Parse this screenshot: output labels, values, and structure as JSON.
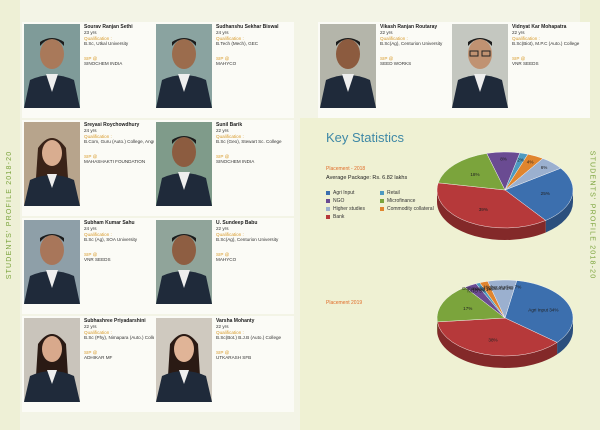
{
  "spine": {
    "left_text": "STUDENTS' PROFILE 2018-20",
    "right_text": "STUDENTS' PROFILE 2018-20"
  },
  "profiles": [
    {
      "name": "Sourav Ranjan Sethi",
      "age": "23 yrs",
      "qual_label": "Qualification :",
      "qualification": "B.Sc, Utkal University",
      "sip_label": "SIP @",
      "sip": "SINOCHEM INDIA"
    },
    {
      "name": "Sudhanshu Sekhar Biswal",
      "age": "24 yrs",
      "qual_label": "Qualification :",
      "qualification": "B.Tech (Mech), GEC",
      "sip_label": "SIP @",
      "sip": "MAHYCO"
    },
    {
      "name": "Vikash Ranjan Routaray",
      "age": "22 yrs",
      "qual_label": "Qualification :",
      "qualification": "B.Sc(Ag), Centurion University",
      "sip_label": "SIP @",
      "sip": "SEED WORKS"
    },
    {
      "name": "Vidnyat Kar Mohapatra",
      "age": "22 yrs",
      "qual_label": "Qualification :",
      "qualification": "B.Sc(Biot), M.P.C (Auto.) College",
      "sip_label": "SIP @",
      "sip": "VNR SEEDS"
    },
    {
      "name": "Sreyasi Roychowdhury",
      "age": "24 yrs",
      "qual_label": "Qualification :",
      "qualification": "B.Com, Guru (Auto.) College, Angul",
      "sip_label": "SIP @",
      "sip": "MAHASHAKTI FOUNDATION"
    },
    {
      "name": "Sunil Barik",
      "age": "22 yrs",
      "qual_label": "Qualification :",
      "qualification": "B.Sc (Geo), Stewart Sc. College",
      "sip_label": "SIP @",
      "sip": "SINOCHEM INDIA"
    },
    {
      "name": "Subham Kumar Sahu",
      "age": "24 yrs",
      "qual_label": "Qualification :",
      "qualification": "B.Sc (Ag), SOA University",
      "sip_label": "SIP @",
      "sip": "VNR SEEDS"
    },
    {
      "name": "U. Sundeep Babu",
      "age": "22 yrs",
      "qual_label": "Qualification :",
      "qualification": "B.Sc(Ag), Centurion University",
      "sip_label": "SIP @",
      "sip": "MAHYCO"
    },
    {
      "name": "Subhashree Priyadarshini",
      "age": "22 yrs",
      "qual_label": "Qualification :",
      "qualification": "B.Sc (Phy), Nimapara (Auto.) College",
      "sip_label": "SIP @",
      "sip": "ADHIKAR MF"
    },
    {
      "name": "Varsha Mohanty",
      "age": "22 yrs",
      "qual_label": "Qualification :",
      "qualification": "B.Sc(Bot.) B.J.B (Auto.) College",
      "sip_label": "SIP @",
      "sip": "UTKARASH SFB"
    }
  ],
  "stats": {
    "title": "Key Statistics",
    "placement_2018": "Placement - 2018",
    "average_package": "Average Package: Rs. 6.82 lakhs",
    "placement_2019": "Placement 2019"
  },
  "legend": [
    {
      "label": "Agri Input",
      "color": "#3c6fae"
    },
    {
      "label": "Retail",
      "color": "#4e9ac0"
    },
    {
      "label": "NGO",
      "color": "#6a4b92"
    },
    {
      "label": "Microfinance",
      "color": "#7ba43c"
    },
    {
      "label": "Higher studies",
      "color": "#9bb0cf"
    },
    {
      "label": "Commodity collateral",
      "color": "#e0852e"
    },
    {
      "label": "Bank",
      "color": "#b6393a"
    }
  ],
  "chart_data": [
    {
      "type": "pie",
      "title": "Placement - 2018",
      "slices": [
        {
          "name": "Agri Input",
          "value": 25,
          "label": "25%",
          "color": "#3c6fae"
        },
        {
          "name": "Bank",
          "value": 39,
          "label": "39%",
          "color": "#b6393a"
        },
        {
          "name": "Microfinance",
          "value": 18,
          "label": "18%",
          "color": "#7ba43c"
        },
        {
          "name": "NGO",
          "value": 8,
          "label": "8%",
          "color": "#6a4b92"
        },
        {
          "name": "Retail",
          "value": 2,
          "label": "2%",
          "color": "#4e9ac0"
        },
        {
          "name": "Commodity collateral",
          "value": 4,
          "label": "4%",
          "color": "#e0852e"
        },
        {
          "name": "Higher studies",
          "value": 6,
          "label": "6%",
          "color": "#9bb0cf"
        }
      ]
    },
    {
      "type": "pie",
      "title": "Placement 2019",
      "slices": [
        {
          "name": "Agri Input",
          "value": 34,
          "label": "Agri Input 34%",
          "color": "#3c6fae"
        },
        {
          "name": "Bank",
          "value": 38,
          "label": "38%",
          "color": "#b6393a"
        },
        {
          "name": "Microfinance",
          "value": 17,
          "label": "17%",
          "color": "#7ba43c"
        },
        {
          "name": "NGO",
          "value": 3,
          "label": "NGO 3%",
          "color": "#6a4b92"
        },
        {
          "name": "Retail",
          "value": 1,
          "label": "Retail 1%",
          "color": "#4e9ac0"
        },
        {
          "name": "Commodity collateral",
          "value": 2,
          "label": "Commodity collateral 2%",
          "color": "#e0852e"
        },
        {
          "name": "Higher studies",
          "value": 7,
          "label": "Higher studies 7%",
          "color": "#9bb0cf"
        }
      ]
    }
  ]
}
